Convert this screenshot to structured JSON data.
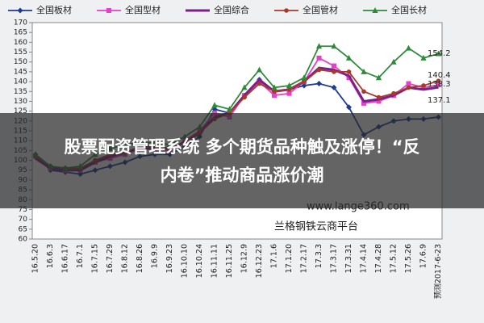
{
  "chart_data": {
    "type": "line",
    "categories": [
      "16.5.20",
      "16.6.3",
      "16.6.17",
      "16.7.1",
      "16.7.15",
      "16.7.29",
      "16.8.12",
      "16.8.26",
      "16.9.9",
      "16.9.23",
      "16.10.10",
      "16.10.24",
      "16.11.11",
      "16.11.25",
      "16.12.9",
      "16.12.23",
      "17.1.6",
      "17.1.20",
      "17.2.17",
      "17.3.3",
      "17.3.17",
      "17.3.31",
      "17.4.14",
      "17.4.28",
      "17.5.12",
      "17.5.26",
      "17.6.9",
      "预测2017-6-23"
    ],
    "series": [
      {
        "name": "全国板材",
        "color": "#1f3a93",
        "marker": "diamond",
        "values": [
          103,
          95,
          94,
          93,
          95,
          97,
          99,
          102,
          103,
          103,
          107,
          112,
          126,
          124,
          133,
          141,
          135,
          136,
          138,
          139,
          137,
          127,
          113,
          117,
          120,
          121,
          121,
          122
        ]
      },
      {
        "name": "全国型材",
        "color": "#e83fc8",
        "marker": "square",
        "values": [
          102,
          96,
          95,
          95,
          99,
          101,
          103,
          106,
          106,
          105,
          110,
          115,
          124,
          122,
          133,
          140,
          133,
          134,
          140,
          152,
          148,
          142,
          129,
          130,
          133,
          139,
          137,
          138.3
        ]
      },
      {
        "name": "全国综合",
        "color": "#7a1f8c",
        "marker": "none",
        "values": [
          101,
          96,
          95,
          95,
          99,
          102,
          104,
          106,
          106,
          106,
          109,
          114,
          122,
          124,
          133,
          141,
          135,
          136,
          140,
          147,
          146,
          143,
          130,
          131,
          133,
          137,
          136,
          137.1
        ]
      },
      {
        "name": "全国管材",
        "color": "#a83a2a",
        "marker": "circle",
        "values": [
          102,
          97,
          96,
          96,
          100,
          103,
          104,
          107,
          107,
          106,
          109,
          114,
          121,
          124,
          132,
          139,
          135,
          136,
          140,
          146,
          145,
          145,
          135,
          132,
          134,
          137,
          138,
          140.4
        ]
      },
      {
        "name": "全国长材",
        "color": "#2e8b3a",
        "marker": "triangle",
        "values": [
          103,
          97,
          96,
          97,
          103,
          106,
          108,
          109,
          109,
          108,
          112,
          117,
          128,
          126,
          137,
          146,
          137,
          138,
          142,
          158,
          158,
          152,
          145,
          142,
          150,
          157,
          152,
          154.2
        ]
      }
    ],
    "annotations": [
      "154.2",
      "140.4",
      "138.3",
      "137.1"
    ],
    "ylim": [
      60,
      170
    ],
    "yticks": [
      60,
      65,
      70,
      75,
      80,
      85,
      90,
      95,
      100,
      105,
      110,
      115,
      120,
      125,
      130,
      135,
      140,
      145,
      150,
      155,
      160,
      165,
      170
    ],
    "grid": false,
    "watermark": [
      "www.lange360.com",
      "兰格钢铁云商平台"
    ]
  },
  "overlay": {
    "lines": [
      "股票配资管理系统 多个期货品种触及涨停！“反",
      "内卷”推动商品涨价潮"
    ]
  }
}
